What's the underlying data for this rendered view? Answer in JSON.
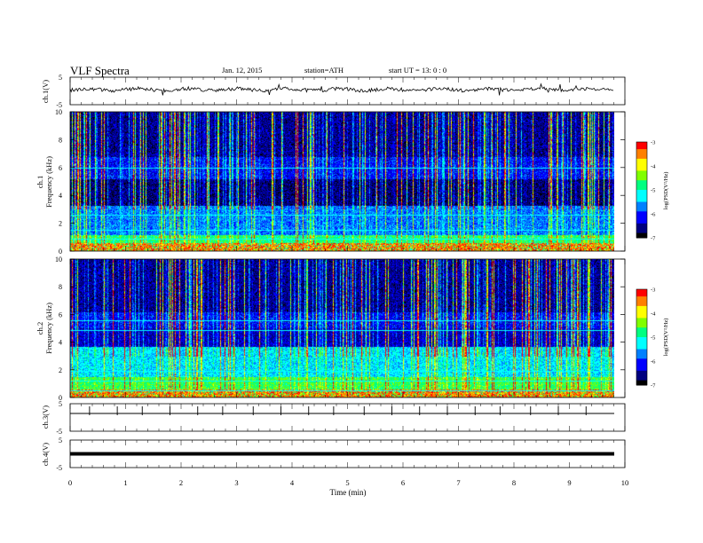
{
  "header": {
    "title": "VLF  Spectra",
    "date": "Jan. 12, 2015",
    "station": "station=ATH",
    "start": "start  UT  =    13: 0  : 0"
  },
  "chart_data": [
    {
      "type": "line",
      "ylabel": "ch.1(V)",
      "ylim": [
        -5,
        5
      ],
      "yticks": [
        "5",
        "-5"
      ],
      "xlim": [
        0,
        10
      ],
      "description_of_signal": "noisy waveform around 0 V with spikes"
    },
    {
      "type": "heatmap",
      "ylabel_channel": "ch.1",
      "ylabel": "Frequency  (kHz)",
      "ylim": [
        0,
        10
      ],
      "yticks": [
        "0",
        "2",
        "4",
        "6",
        "8",
        "10"
      ],
      "xlim": [
        0,
        9.8
      ],
      "colorbar": {
        "label": "log(PSD(V²/Hz)",
        "range": [
          -7,
          -3
        ],
        "ticks": [
          "-3",
          "-4",
          "-5",
          "-6",
          "-7"
        ]
      }
    },
    {
      "type": "heatmap",
      "ylabel_channel": "ch.2",
      "ylabel": "Frequency  (kHz)",
      "ylim": [
        0,
        10
      ],
      "yticks": [
        "0",
        "2",
        "4",
        "6",
        "8",
        "10"
      ],
      "xlim": [
        0,
        9.8
      ],
      "colorbar": {
        "label": "log(PSD(V²/Hz)",
        "range": [
          -7,
          -3
        ],
        "ticks": [
          "-3",
          "-4",
          "-5",
          "-6",
          "-7"
        ]
      }
    },
    {
      "type": "line",
      "ylabel": "ch.3(V)",
      "ylim": [
        -5,
        5
      ],
      "yticks": [
        "5",
        "-5"
      ],
      "xlim": [
        0,
        10
      ],
      "spike_times_min": [
        0.35,
        0.85,
        1.3,
        1.8,
        2.3,
        2.75,
        3.3,
        3.8,
        4.3,
        4.75,
        5.3,
        5.8,
        6.3,
        6.8,
        7.3,
        7.75,
        8.3,
        8.8,
        9.3
      ]
    },
    {
      "type": "line",
      "ylabel": "ch.4(V)",
      "ylim": [
        -5,
        5
      ],
      "yticks": [
        "5",
        "-5"
      ],
      "xlim": [
        0,
        10
      ],
      "level_V": 0
    }
  ],
  "xaxis": {
    "label": "Time  (min)",
    "ticks": [
      "0",
      "1",
      "2",
      "3",
      "4",
      "5",
      "6",
      "7",
      "8",
      "9",
      "10"
    ],
    "range": [
      0,
      10
    ]
  },
  "colors": {
    "colormap": [
      "#000000",
      "#00007f",
      "#0000ff",
      "#0080ff",
      "#00ffff",
      "#00ff80",
      "#80ff00",
      "#ffff00",
      "#ff8000",
      "#ff0000",
      "#ffffff"
    ]
  }
}
